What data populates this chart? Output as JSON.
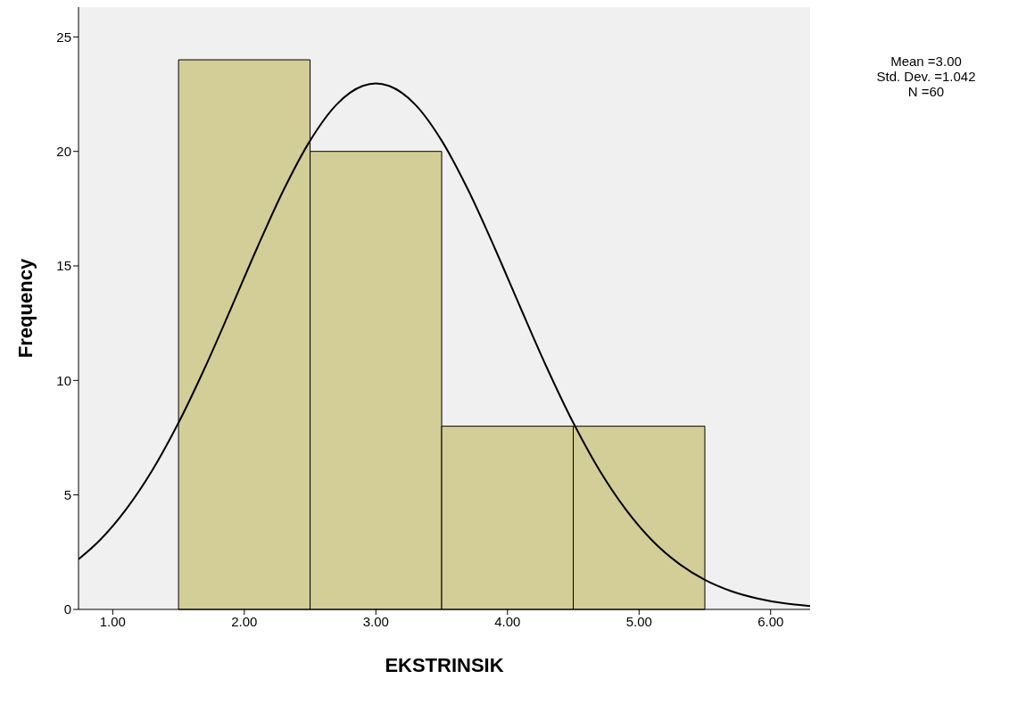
{
  "chart_data": {
    "type": "histogram",
    "xlabel": "EKSTRINSIK",
    "ylabel": "Frequency",
    "bins": [
      1.5,
      2.5,
      3.5,
      4.5,
      5.5
    ],
    "values": [
      24,
      20,
      8,
      8
    ],
    "color": "#d3ce97",
    "series": [
      {
        "type": "line",
        "color": "#000000",
        "x": [
          0.74,
          0.9,
          1.1,
          1.3,
          1.5,
          1.7,
          1.9,
          2.1,
          2.3,
          2.5,
          2.7,
          2.9,
          3.0,
          3.1,
          3.3,
          3.5,
          3.7,
          3.9,
          4.1,
          4.3,
          4.5,
          4.7,
          4.9,
          5.1,
          5.3,
          5.5,
          5.7,
          5.9,
          6.1,
          6.3
        ],
        "values": [
          2.19,
          3.01,
          4.36,
          6.07,
          8.15,
          10.55,
          13.16,
          15.82,
          18.33,
          20.47,
          22.04,
          22.86,
          22.97,
          22.86,
          22.04,
          20.47,
          18.33,
          15.82,
          13.16,
          10.55,
          8.15,
          6.07,
          4.36,
          3.01,
          2.01,
          1.29,
          0.8,
          0.48,
          0.27,
          0.15
        ]
      }
    ],
    "xlim": [
      0.74,
      6.3
    ],
    "xticks": [
      {
        "value": 1,
        "label": "1.00"
      },
      {
        "value": 2,
        "label": "2.00"
      },
      {
        "value": 3,
        "label": "3.00"
      },
      {
        "value": 4,
        "label": "4.00"
      },
      {
        "value": 5,
        "label": "5.00"
      },
      {
        "value": 6,
        "label": "6.00"
      }
    ],
    "ylim": [
      0,
      26.3
    ],
    "yticks": [
      0,
      5,
      10,
      15,
      20,
      25
    ],
    "annotations": [
      "Mean =3.00",
      "Std. Dev. =1.042",
      "N =60"
    ],
    "grid": false
  }
}
